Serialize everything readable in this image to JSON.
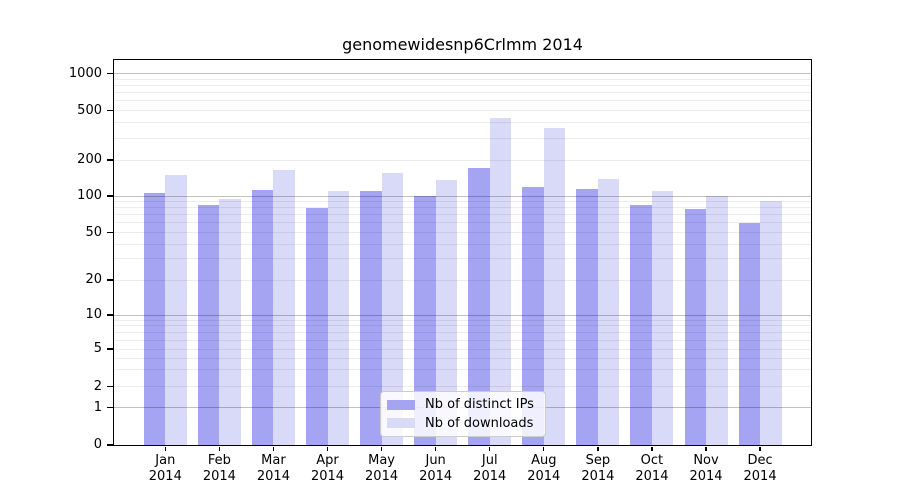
{
  "chart_data": {
    "type": "bar",
    "title": "genomewidesnp6Crlmm 2014",
    "categories": [
      "Jan 2014",
      "Feb 2014",
      "Mar 2014",
      "Apr 2014",
      "May 2014",
      "Jun 2014",
      "Jul 2014",
      "Aug 2014",
      "Sep 2014",
      "Oct 2014",
      "Nov 2014",
      "Dec 2014"
    ],
    "series": [
      {
        "name": "Nb of distinct IPs",
        "color": "#a4a4f2",
        "values": [
          105,
          85,
          113,
          80,
          111,
          100,
          170,
          118,
          114,
          85,
          78,
          60
        ]
      },
      {
        "name": "Nb of downloads",
        "color": "#d9d9f8",
        "values": [
          150,
          95,
          165,
          110,
          155,
          135,
          435,
          365,
          140,
          110,
          100,
          91
        ]
      }
    ],
    "xlabel": "",
    "ylabel": "",
    "yscale": "symlog",
    "yticks": [
      0,
      1,
      2,
      5,
      10,
      20,
      50,
      100,
      200,
      500,
      1000
    ],
    "ylim": [
      0,
      1300
    ],
    "grid": "horizontal, dark lines at decades, faint minor log lines",
    "legend_position": "lower center inside plot"
  },
  "colors": {
    "bar_distinct_ips": "#a4a4f2",
    "bar_downloads": "#d9d9f8",
    "grid_major": "#c2c2c2",
    "grid_minor": "#ededed",
    "axis_spine": "#000000",
    "background": "#ffffff"
  }
}
